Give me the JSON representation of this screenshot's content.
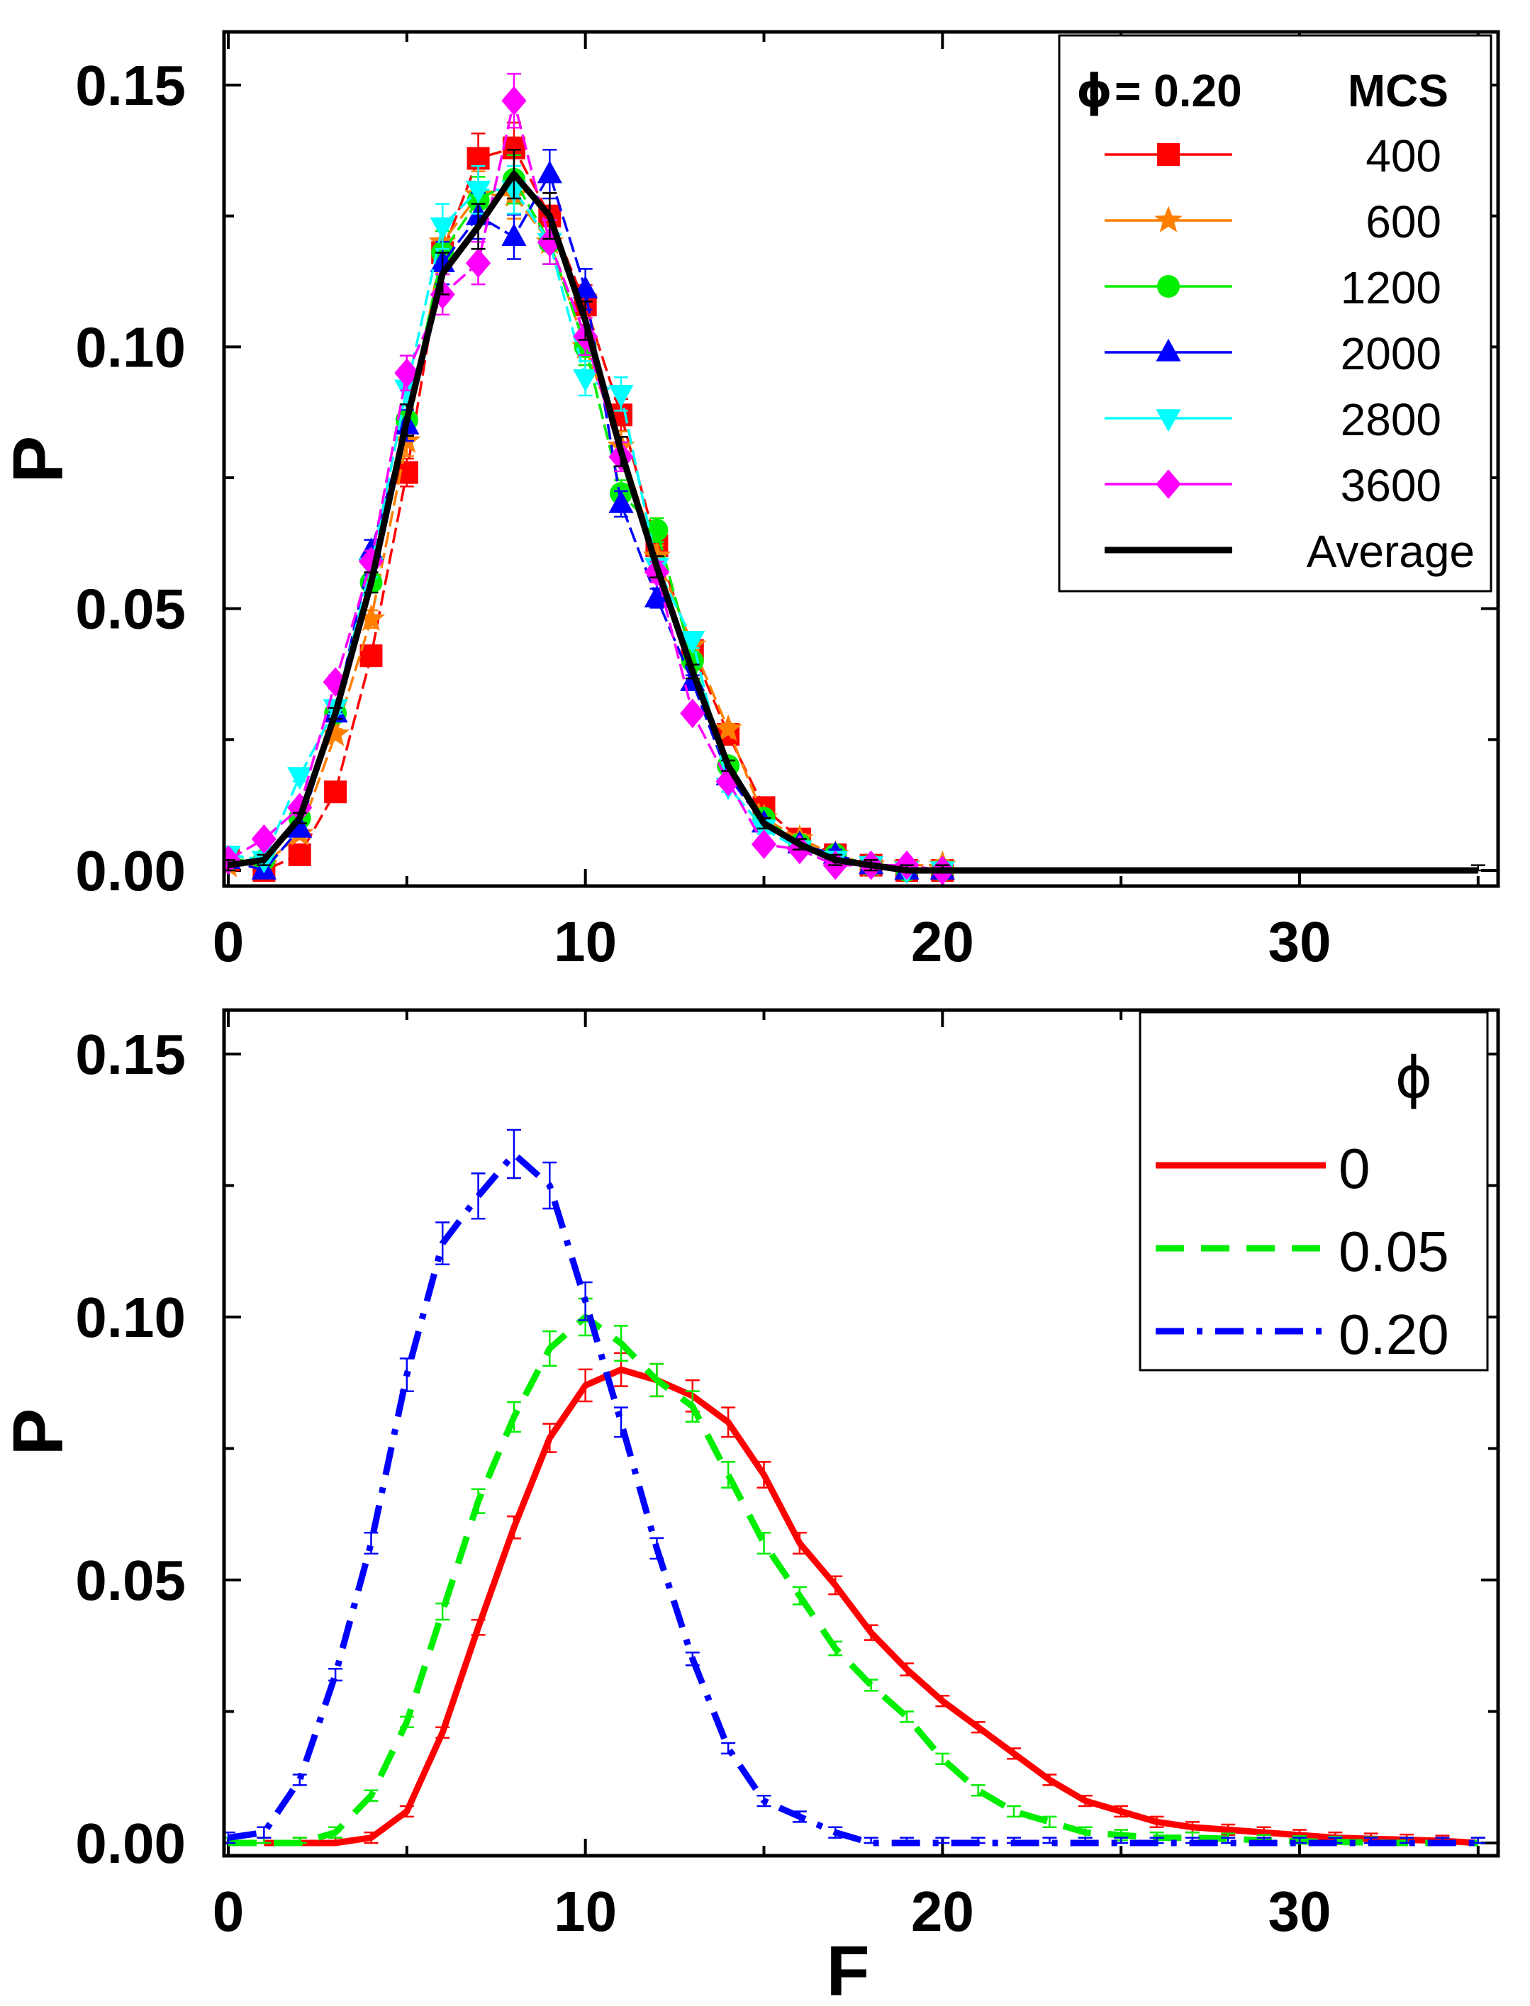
{
  "chart_data": [
    {
      "type": "line",
      "panel": "top",
      "title": "",
      "xlabel": "",
      "ylabel": "P",
      "xlim": [
        0,
        35
      ],
      "ylim": [
        0,
        0.16
      ],
      "xticks": [
        "0",
        "10",
        "20",
        "30"
      ],
      "yticks": [
        "0.00",
        "0.05",
        "0.10",
        "0.15"
      ],
      "legend": {
        "position": "top-right",
        "phi_symbol": "ϕ",
        "header_left": "= 0.20",
        "header_right": "MCS",
        "entries": [
          "400",
          "600",
          "1200",
          "2000",
          "2800",
          "3600",
          "Average"
        ]
      },
      "series": [
        {
          "name": "400",
          "color": "#ff0000",
          "marker": "square",
          "x": [
            0,
            1,
            2,
            3,
            4,
            5,
            6,
            7,
            8,
            9,
            10,
            11,
            12,
            13,
            14,
            15,
            16,
            17,
            18,
            19,
            20
          ],
          "y": [
            0.002,
            0.0,
            0.003,
            0.015,
            0.041,
            0.076,
            0.118,
            0.136,
            0.138,
            0.125,
            0.108,
            0.087,
            0.062,
            0.042,
            0.026,
            0.012,
            0.006,
            0.003,
            0.001,
            0.0,
            0.0
          ]
        },
        {
          "name": "600",
          "color": "#ff7f00",
          "marker": "star",
          "x": [
            0,
            1,
            2,
            3,
            4,
            5,
            6,
            7,
            8,
            9,
            10,
            11,
            12,
            13,
            14,
            15,
            16,
            17,
            18,
            19,
            20
          ],
          "y": [
            0.001,
            0.001,
            0.007,
            0.026,
            0.048,
            0.082,
            0.12,
            0.129,
            0.129,
            0.12,
            0.1,
            0.081,
            0.06,
            0.043,
            0.027,
            0.01,
            0.006,
            0.003,
            0.001,
            0.001,
            0.001
          ]
        },
        {
          "name": "1200",
          "color": "#00ee00",
          "marker": "circle",
          "x": [
            0,
            1,
            2,
            3,
            4,
            5,
            6,
            7,
            8,
            9,
            10,
            11,
            12,
            13,
            14,
            15,
            16,
            17,
            18,
            19,
            20
          ],
          "y": [
            0.002,
            0.002,
            0.01,
            0.03,
            0.055,
            0.086,
            0.118,
            0.128,
            0.132,
            0.12,
            0.1,
            0.072,
            0.065,
            0.04,
            0.02,
            0.01,
            0.005,
            0.003,
            0.001,
            0.0,
            0.0
          ]
        },
        {
          "name": "2000",
          "color": "#0000ff",
          "marker": "triangle-up",
          "x": [
            0,
            1,
            2,
            3,
            4,
            5,
            6,
            7,
            8,
            9,
            10,
            11,
            12,
            13,
            14,
            15,
            16,
            17,
            18,
            19,
            20
          ],
          "y": [
            0.002,
            0.0,
            0.008,
            0.03,
            0.061,
            0.085,
            0.116,
            0.125,
            0.121,
            0.133,
            0.111,
            0.07,
            0.052,
            0.036,
            0.018,
            0.009,
            0.005,
            0.003,
            0.001,
            0.0,
            0.0
          ]
        },
        {
          "name": "2800",
          "color": "#00ffff",
          "marker": "triangle-down",
          "x": [
            0,
            1,
            2,
            3,
            4,
            5,
            6,
            7,
            8,
            9,
            10,
            11,
            12,
            13,
            14,
            15,
            16,
            17,
            18,
            19,
            20
          ],
          "y": [
            0.003,
            0.002,
            0.018,
            0.031,
            0.058,
            0.092,
            0.123,
            0.13,
            0.13,
            0.12,
            0.094,
            0.091,
            0.058,
            0.044,
            0.016,
            0.008,
            0.004,
            0.002,
            0.001,
            0.0,
            0.0
          ]
        },
        {
          "name": "3600",
          "color": "#ff00ff",
          "marker": "diamond",
          "x": [
            0,
            1,
            2,
            3,
            4,
            5,
            6,
            7,
            8,
            9,
            10,
            11,
            12,
            13,
            14,
            15,
            16,
            17,
            18,
            19,
            20
          ],
          "y": [
            0.002,
            0.006,
            0.012,
            0.036,
            0.059,
            0.095,
            0.11,
            0.116,
            0.147,
            0.12,
            0.102,
            0.079,
            0.057,
            0.03,
            0.017,
            0.005,
            0.004,
            0.001,
            0.001,
            0.001,
            0.0
          ]
        },
        {
          "name": "Average",
          "color": "#000000",
          "marker": "none",
          "x": [
            0,
            1,
            2,
            3,
            4,
            5,
            6,
            7,
            8,
            9,
            10,
            11,
            12,
            13,
            14,
            15,
            16,
            17,
            18,
            19,
            20,
            35
          ],
          "y": [
            0.001,
            0.002,
            0.01,
            0.03,
            0.055,
            0.086,
            0.114,
            0.123,
            0.133,
            0.125,
            0.105,
            0.08,
            0.058,
            0.038,
            0.02,
            0.009,
            0.005,
            0.002,
            0.001,
            0.0,
            0.0,
            0.0
          ]
        }
      ]
    },
    {
      "type": "line",
      "panel": "bottom",
      "title": "",
      "xlabel": "F",
      "ylabel": "P",
      "xlim": [
        0,
        35
      ],
      "ylim": [
        0,
        0.16
      ],
      "xticks": [
        "0",
        "10",
        "20",
        "30"
      ],
      "yticks": [
        "0.00",
        "0.05",
        "0.10",
        "0.15"
      ],
      "legend": {
        "position": "top-right",
        "header": "ϕ",
        "entries": [
          "0",
          "0.05",
          "0.20"
        ]
      },
      "series": [
        {
          "name": "0",
          "color": "#ff0000",
          "dash": "solid",
          "x": [
            1,
            2,
            3,
            4,
            5,
            6,
            7,
            8,
            9,
            10,
            11,
            12,
            13,
            14,
            15,
            16,
            17,
            18,
            19,
            20,
            21,
            22,
            23,
            24,
            25,
            26,
            27,
            28,
            29,
            30,
            31,
            32,
            33,
            34,
            35
          ],
          "y": [
            0.0,
            0.0,
            0.0,
            0.001,
            0.006,
            0.021,
            0.041,
            0.06,
            0.077,
            0.087,
            0.09,
            0.088,
            0.085,
            0.08,
            0.07,
            0.057,
            0.049,
            0.04,
            0.033,
            0.027,
            0.022,
            0.017,
            0.012,
            0.008,
            0.006,
            0.004,
            0.003,
            0.0025,
            0.002,
            0.0015,
            0.001,
            0.0008,
            0.0006,
            0.0004,
            0.0
          ]
        },
        {
          "name": "0.05",
          "color": "#00ee00",
          "dash": "dashed",
          "x": [
            0,
            1,
            2,
            3,
            4,
            5,
            6,
            7,
            8,
            9,
            10,
            11,
            12,
            13,
            14,
            15,
            16,
            17,
            18,
            19,
            20,
            21,
            22,
            23,
            24,
            25,
            26,
            27,
            28,
            29,
            30,
            31,
            32,
            33,
            34,
            35
          ],
          "y": [
            0.0,
            0.0,
            0.0,
            0.002,
            0.009,
            0.023,
            0.044,
            0.065,
            0.081,
            0.094,
            0.1,
            0.095,
            0.088,
            0.083,
            0.07,
            0.057,
            0.047,
            0.037,
            0.03,
            0.024,
            0.016,
            0.01,
            0.006,
            0.004,
            0.002,
            0.0015,
            0.001,
            0.001,
            0.0008,
            0.0005,
            0.0003,
            0.0002,
            0.0001,
            0.0,
            0.0,
            0.0
          ]
        },
        {
          "name": "0.20",
          "color": "#0000ff",
          "dash": "dash-dot",
          "x": [
            0,
            1,
            2,
            3,
            4,
            5,
            6,
            7,
            8,
            9,
            10,
            11,
            12,
            13,
            14,
            15,
            16,
            17,
            18,
            19,
            20,
            21,
            22,
            23,
            24,
            25,
            26,
            27,
            28,
            29,
            30,
            31,
            32,
            33,
            34,
            35
          ],
          "y": [
            0.001,
            0.002,
            0.012,
            0.032,
            0.057,
            0.089,
            0.114,
            0.123,
            0.131,
            0.125,
            0.103,
            0.08,
            0.056,
            0.035,
            0.018,
            0.008,
            0.005,
            0.002,
            0.0,
            0.0,
            0.0,
            0.0,
            0.0,
            0.0,
            0.0,
            0.0,
            0.0,
            0.0,
            0.0,
            0.0,
            0.0,
            0.0,
            0.0,
            0.0,
            0.0,
            0.0
          ]
        }
      ]
    }
  ]
}
